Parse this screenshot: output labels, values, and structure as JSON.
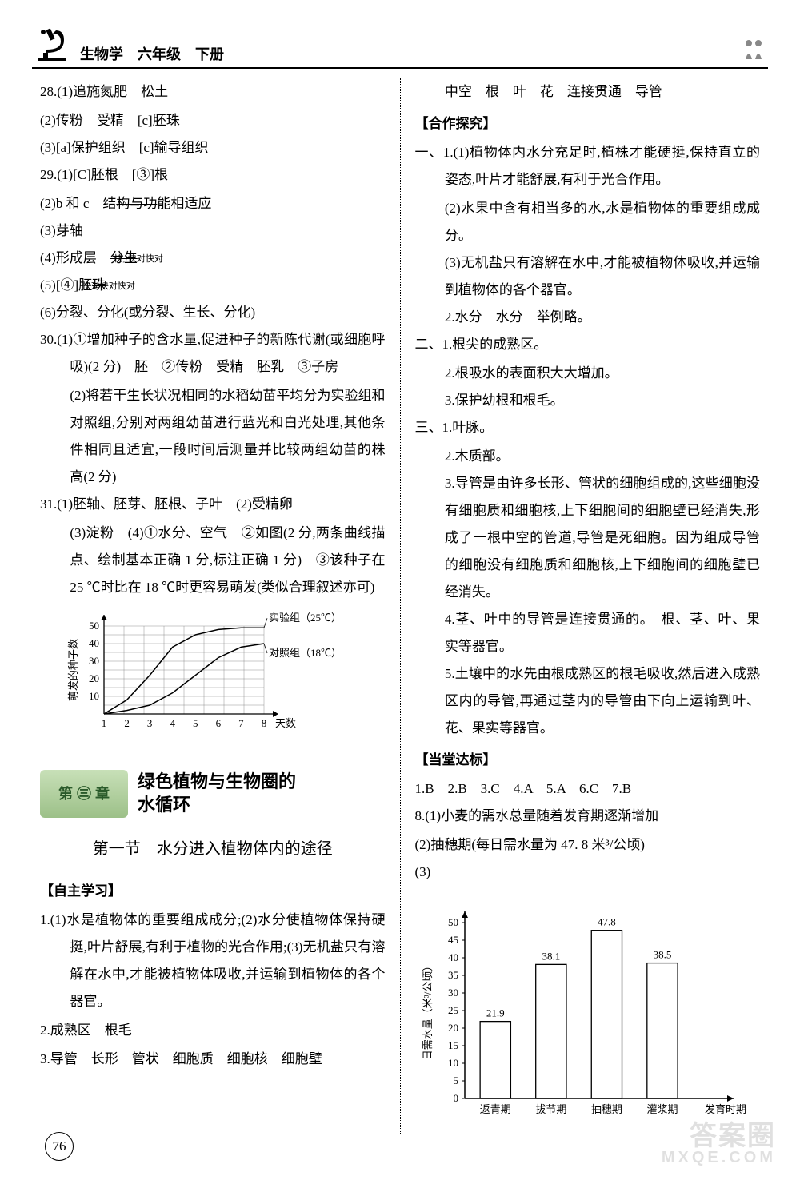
{
  "header": {
    "title": "生物学　六年级　下册"
  },
  "page_number": "76",
  "watermark_main": "答案圈",
  "watermark_sub": "MXQE.COM",
  "left": {
    "q28_1": "28.(1)追施氮肥　松土",
    "q28_2": "(2)传粉　受精　[c]胚珠",
    "q28_3": "(3)[a]保护组织　[c]输导组织",
    "q29_1": "29.(1)[C]胚根　[③]根",
    "q29_2_a": "(2)b 和 c　结",
    "q29_2_b": "构与功",
    "q29_2_c": "能相适应",
    "q29_3": "(3)芽轴",
    "q29_4_a": "(4)形成层　",
    "q29_4_b": "分生",
    "q29_small1": "快,!快对快对",
    "q29_5": "(5)[④]胚",
    "q29_5b": "珠",
    "q29_small2": "快对快对快对",
    "q29_6": "(6)分裂、分化(或分裂、生长、分化)",
    "q30_1": "30.(1)①增加种子的含水量,促进种子的新陈代谢(或细胞呼吸)(2 分)　胚　②传粉　受精　胚乳　③子房",
    "q30_2": "(2)将若干生长状况相同的水稻幼苗平均分为实验组和对照组,分别对两组幼苗进行蓝光和白光处理,其他条件相同且适宜,一段时间后测量并比较两组幼苗的株高(2 分)",
    "q31_1": "31.(1)胚轴、胚芽、胚根、子叶　(2)受精卵",
    "q31_3": "(3)淀粉　(4)①水分、空气　②如图(2 分,两条曲线描点、绘制基本正确 1 分,标注正确 1 分)　③该种子在 25 ℃时比在 18 ℃时更容易萌发(类似合理叙述亦可)",
    "line_chart": {
      "type": "line",
      "x_label": "天数",
      "y_label": "萌发的种子数",
      "x_ticks": [
        "1",
        "2",
        "3",
        "4",
        "5",
        "6",
        "7",
        "8"
      ],
      "y_ticks": [
        "10",
        "20",
        "30",
        "40",
        "50"
      ],
      "series": [
        {
          "name": "实验组（25℃）",
          "color": "#000000",
          "points": [
            [
              1,
              0
            ],
            [
              2,
              8
            ],
            [
              3,
              22
            ],
            [
              4,
              38
            ],
            [
              5,
              45
            ],
            [
              6,
              48
            ],
            [
              7,
              49
            ],
            [
              8,
              49
            ]
          ]
        },
        {
          "name": "对照组（18℃）",
          "color": "#000000",
          "points": [
            [
              1,
              0
            ],
            [
              2,
              2
            ],
            [
              3,
              5
            ],
            [
              4,
              12
            ],
            [
              5,
              22
            ],
            [
              6,
              32
            ],
            [
              7,
              38
            ],
            [
              8,
              40
            ]
          ]
        }
      ],
      "grid_color": "#777777",
      "background_color": "#ffffff",
      "label_fontsize": 13
    },
    "chapter_badge": "第 ㊂ 章",
    "chapter_title_1": "绿色植物与生物圈的",
    "chapter_title_2": "水循环",
    "section_title": "第一节　水分进入植物体内的途径",
    "zizhu_heading": "【自主学习】",
    "zz1": "1.(1)水是植物体的重要组成成分;(2)水分使植物体保持硬挺,叶片舒展,有利于植物的光合作用;(3)无机盐只有溶解在水中,才能被植物体吸收,并运输到植物体的各个器官。",
    "zz2": "2.成熟区　根毛",
    "zz3": "3.导管　长形　管状　细胞质　细胞核　细胞壁"
  },
  "right": {
    "top_line": "中空　根　叶　花　连接贯通　导管",
    "hezuo_heading": "【合作探究】",
    "h1_1": "一、1.(1)植物体内水分充足时,植株才能硬挺,保持直立的姿态,叶片才能舒展,有利于光合作用。",
    "h1_2": "(2)水果中含有相当多的水,水是植物体的重要组成成分。",
    "h1_3": "(3)无机盐只有溶解在水中,才能被植物体吸收,并运输到植物体的各个器官。",
    "h1_4": "2.水分　水分　举例略。",
    "h2_1": "二、1.根尖的成熟区。",
    "h2_2": "2.根吸水的表面积大大增加。",
    "h2_3": "3.保护幼根和根毛。",
    "h3_1": "三、1.叶脉。",
    "h3_2": "2.木质部。",
    "h3_3": "3.导管是由许多长形、管状的细胞组成的,这些细胞没有细胞质和细胞核,上下细胞间的细胞壁已经消失,形成了一根中空的管道,导管是死细胞。因为组成导管的细胞没有细胞质和细胞核,上下细胞间的细胞壁已经消失。",
    "h3_4": "4.茎、叶中的导管是连接贯通的。　根、茎、叶、果实等器官。",
    "h3_5": "5.土壤中的水先由根成熟区的根毛吸收,然后进入成熟区内的导管,再通过茎内的导管由下向上运输到叶、花、果实等器官。",
    "dangtang_heading": "【当堂达标】",
    "mc": "1.B　2.B　3.C　4.A　5.A　6.C　7.B",
    "q8_1": "8.(1)小麦的需水总量随着发育期逐渐增加",
    "q8_2": "(2)抽穗期(每日需水量为 47. 8 米³/公顷)",
    "q8_3": "(3)",
    "bar_chart": {
      "type": "bar",
      "y_label": "日需水量（米³/公顷）",
      "x_label": "发育时期",
      "categories": [
        "返青期",
        "拔节期",
        "抽穗期",
        "灌浆期"
      ],
      "values": [
        21.9,
        38.1,
        47.8,
        38.5
      ],
      "value_labels": [
        "21.9",
        "38.1",
        "47.8",
        "38.5"
      ],
      "bar_color": "#ffffff",
      "bar_border": "#000000",
      "y_ticks": [
        0,
        5,
        10,
        15,
        20,
        25,
        30,
        35,
        40,
        45,
        50
      ],
      "ylim": [
        0,
        50
      ],
      "background_color": "#ffffff",
      "label_fontsize": 13,
      "bar_width": 0.55
    }
  }
}
